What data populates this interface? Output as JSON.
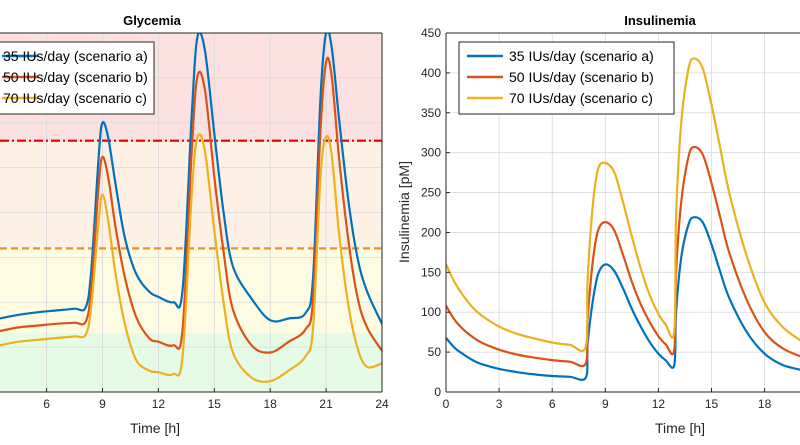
{
  "chart_data": [
    {
      "type": "line",
      "title": "Glycemia",
      "xlabel": "Time [h]",
      "ylabel": "",
      "xlim": [
        3.5,
        24
      ],
      "ylim": [
        0,
        1
      ],
      "xticks": [
        6,
        9,
        12,
        15,
        18,
        21,
        24
      ],
      "xtick_labels": [
        "6",
        "9",
        "12",
        "15",
        "18",
        "21",
        "24"
      ],
      "grid": true,
      "legend": "top-left",
      "background_bands": [
        {
          "from": 0,
          "to": 0.165,
          "color": "#e6fbe6"
        },
        {
          "from": 0.165,
          "to": 0.4,
          "color": "#fefbe3"
        },
        {
          "from": 0.4,
          "to": 0.7,
          "color": "#fdf0e4"
        },
        {
          "from": 0.7,
          "to": 1.0,
          "color": "#fde0e0"
        }
      ],
      "threshold_lines": [
        {
          "value": 0.7,
          "color": "#e00000",
          "style": "dashdot"
        },
        {
          "value": 0.4,
          "color": "#f28c28",
          "style": "dashed"
        }
      ],
      "series": [
        {
          "name": "35 IUs/day (scenario a)",
          "color": "#0072bd",
          "x": [
            3.5,
            4.5,
            5.5,
            6.5,
            7.5,
            8.1,
            8.4,
            8.8,
            9.0,
            9.3,
            9.7,
            10.2,
            10.8,
            11.5,
            12.0,
            12.8,
            13.3,
            13.8,
            14.1,
            14.5,
            15.0,
            15.5,
            16.0,
            17.0,
            18.0,
            19.0,
            19.9,
            20.3,
            20.7,
            21.0,
            21.3,
            21.7,
            22.2,
            22.7,
            23.2,
            24.0
          ],
          "y": [
            0.205,
            0.215,
            0.222,
            0.227,
            0.232,
            0.236,
            0.34,
            0.66,
            0.75,
            0.71,
            0.58,
            0.43,
            0.33,
            0.28,
            0.265,
            0.25,
            0.285,
            0.78,
            0.99,
            0.95,
            0.72,
            0.5,
            0.35,
            0.26,
            0.2,
            0.205,
            0.22,
            0.32,
            0.82,
            1.0,
            0.96,
            0.76,
            0.53,
            0.37,
            0.28,
            0.19
          ]
        },
        {
          "name": "50 IUs/day (scenario b)",
          "color": "#d95319",
          "x": [
            3.5,
            4.5,
            5.5,
            6.5,
            7.5,
            8.1,
            8.4,
            8.8,
            9.0,
            9.3,
            9.7,
            10.2,
            10.8,
            11.5,
            12.0,
            12.8,
            13.3,
            13.8,
            14.1,
            14.5,
            15.0,
            15.5,
            16.0,
            17.0,
            18.0,
            19.0,
            19.9,
            20.3,
            20.7,
            21.0,
            21.3,
            21.7,
            22.2,
            22.7,
            23.2,
            24.0
          ],
          "y": [
            0.17,
            0.18,
            0.185,
            0.19,
            0.193,
            0.196,
            0.29,
            0.58,
            0.655,
            0.6,
            0.46,
            0.32,
            0.21,
            0.15,
            0.14,
            0.13,
            0.175,
            0.68,
            0.88,
            0.84,
            0.6,
            0.39,
            0.23,
            0.13,
            0.11,
            0.14,
            0.175,
            0.26,
            0.73,
            0.92,
            0.88,
            0.65,
            0.42,
            0.26,
            0.18,
            0.115
          ]
        },
        {
          "name": "70 IUs/day (scenario c)",
          "color": "#edb120",
          "x": [
            3.5,
            4.5,
            5.5,
            6.5,
            7.5,
            8.1,
            8.4,
            8.8,
            9.0,
            9.3,
            9.7,
            10.2,
            10.8,
            11.5,
            12.0,
            12.8,
            13.3,
            13.8,
            14.1,
            14.5,
            15.0,
            15.5,
            16.0,
            17.0,
            18.0,
            19.0,
            19.9,
            20.3,
            20.7,
            21.0,
            21.3,
            21.7,
            22.2,
            22.7,
            23.2,
            24.0
          ],
          "y": [
            0.13,
            0.14,
            0.145,
            0.15,
            0.155,
            0.16,
            0.24,
            0.48,
            0.55,
            0.48,
            0.33,
            0.19,
            0.09,
            0.06,
            0.055,
            0.05,
            0.1,
            0.56,
            0.71,
            0.67,
            0.45,
            0.25,
            0.11,
            0.04,
            0.03,
            0.06,
            0.1,
            0.18,
            0.6,
            0.71,
            0.66,
            0.44,
            0.24,
            0.12,
            0.07,
            0.08
          ]
        }
      ]
    },
    {
      "type": "line",
      "title": "Insulinemia",
      "xlabel": "Time [h]",
      "ylabel": "Insulinemia [pM]",
      "xlim": [
        0,
        20
      ],
      "ylim": [
        0,
        450
      ],
      "xticks": [
        0,
        3,
        6,
        9,
        12,
        15,
        18
      ],
      "xtick_labels": [
        "0",
        "3",
        "6",
        "9",
        "12",
        "15",
        "18"
      ],
      "yticks": [
        0,
        50,
        100,
        150,
        200,
        250,
        300,
        350,
        400,
        450
      ],
      "ytick_labels": [
        "0",
        "50",
        "100",
        "150",
        "200",
        "250",
        "300",
        "350",
        "400",
        "450"
      ],
      "grid": true,
      "legend": "top-left",
      "series": [
        {
          "name": "35 IUs/day (scenario a)",
          "color": "#0072bd",
          "x": [
            0,
            0.5,
            1,
            1.5,
            2,
            3,
            4,
            5,
            6,
            7,
            7.9,
            8.0,
            8.3,
            8.6,
            9.0,
            9.5,
            10,
            10.5,
            11,
            11.5,
            12,
            12.4,
            12.9,
            13.0,
            13.3,
            13.7,
            14.0,
            14.5,
            15,
            15.5,
            16,
            17,
            18,
            19,
            20
          ],
          "y": [
            68,
            55,
            47,
            40,
            35,
            29,
            25,
            22,
            20,
            19,
            18,
            60,
            115,
            148,
            160,
            152,
            130,
            104,
            82,
            63,
            48,
            40,
            34,
            100,
            170,
            210,
            219,
            213,
            185,
            150,
            118,
            75,
            48,
            34,
            28
          ]
        },
        {
          "name": "50 IUs/day (scenario b)",
          "color": "#d95319",
          "x": [
            0,
            0.5,
            1,
            1.5,
            2,
            3,
            4,
            5,
            6,
            7,
            7.9,
            8.0,
            8.3,
            8.6,
            9.0,
            9.5,
            10,
            10.5,
            11,
            11.5,
            12,
            12.4,
            12.9,
            13.0,
            13.3,
            13.7,
            14.0,
            14.5,
            15,
            15.5,
            16,
            17,
            18,
            19,
            20
          ],
          "y": [
            108,
            90,
            78,
            69,
            62,
            53,
            47,
            43,
            40,
            38,
            36,
            90,
            165,
            203,
            213,
            203,
            172,
            138,
            110,
            88,
            70,
            60,
            53,
            150,
            240,
            295,
            307,
            298,
            262,
            218,
            175,
            115,
            75,
            55,
            45
          ]
        },
        {
          "name": "70 IUs/day (scenario c)",
          "color": "#edb120",
          "x": [
            0,
            0.5,
            1,
            1.5,
            2,
            3,
            4,
            5,
            6,
            7,
            7.9,
            8.0,
            8.3,
            8.6,
            9.0,
            9.5,
            10,
            10.5,
            11,
            11.5,
            12,
            12.4,
            12.9,
            13.0,
            13.3,
            13.7,
            14.0,
            14.5,
            15,
            15.5,
            16,
            17,
            18,
            19,
            20
          ],
          "y": [
            160,
            137,
            120,
            106,
            96,
            82,
            73,
            67,
            62,
            59,
            57,
            140,
            235,
            280,
            287,
            276,
            238,
            195,
            155,
            122,
            98,
            85,
            77,
            220,
            340,
            405,
            418,
            406,
            360,
            305,
            250,
            170,
            112,
            82,
            65
          ]
        }
      ]
    }
  ]
}
